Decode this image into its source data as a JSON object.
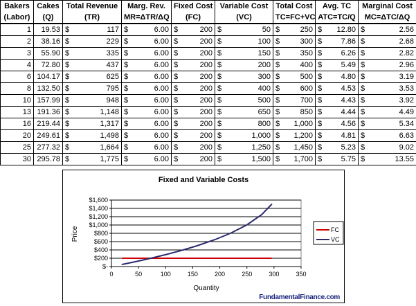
{
  "table": {
    "headers1": [
      "Bakers",
      "Cakes",
      "Total Revenue",
      "Marg. Rev.",
      "Fixed Cost",
      "Variable Cost",
      "Total Cost",
      "Avg. TC",
      "Marginal Cost"
    ],
    "headers2": [
      "(Labor)",
      "(Q)",
      "(TR)",
      "MR=ΔTR/ΔQ",
      "(FC)",
      "(VC)",
      "TC=FC+VC",
      "ATC=TC/Q",
      "MC=ΔTC/ΔQ"
    ],
    "currency": "$",
    "rows": [
      [
        "1",
        "19.53",
        "117",
        "6.00",
        "200",
        "50",
        "250",
        "12.80",
        "2.56"
      ],
      [
        "2",
        "38.16",
        "229",
        "6.00",
        "200",
        "100",
        "300",
        "7.86",
        "2.68"
      ],
      [
        "3",
        "55.90",
        "335",
        "6.00",
        "200",
        "150",
        "350",
        "6.26",
        "2.82"
      ],
      [
        "4",
        "72.80",
        "437",
        "6.00",
        "200",
        "200",
        "400",
        "5.49",
        "2.96"
      ],
      [
        "6",
        "104.17",
        "625",
        "6.00",
        "200",
        "300",
        "500",
        "4.80",
        "3.19"
      ],
      [
        "8",
        "132.50",
        "795",
        "6.00",
        "200",
        "400",
        "600",
        "4.53",
        "3.53"
      ],
      [
        "10",
        "157.99",
        "948",
        "6.00",
        "200",
        "500",
        "700",
        "4.43",
        "3.92"
      ],
      [
        "13",
        "191.36",
        "1,148",
        "6.00",
        "200",
        "650",
        "850",
        "4.44",
        "4.49"
      ],
      [
        "16",
        "219.44",
        "1,317",
        "6.00",
        "200",
        "800",
        "1,000",
        "4.56",
        "5.34"
      ],
      [
        "20",
        "249.61",
        "1,498",
        "6.00",
        "200",
        "1,000",
        "1,200",
        "4.81",
        "6.63"
      ],
      [
        "25",
        "277.32",
        "1,664",
        "6.00",
        "200",
        "1,250",
        "1,450",
        "5.23",
        "9.02"
      ],
      [
        "30",
        "295.78",
        "1,775",
        "6.00",
        "200",
        "1,500",
        "1,700",
        "5.75",
        "13.55"
      ]
    ]
  },
  "chart_data": {
    "type": "line",
    "title": "Fixed and Variable Costs",
    "xlabel": "Quantity",
    "ylabel": "Price",
    "xlim": [
      0,
      350
    ],
    "ylim": [
      0,
      1600
    ],
    "xticks": [
      "0",
      "50",
      "100",
      "150",
      "200",
      "250",
      "300",
      "350"
    ],
    "yticks": [
      "$-",
      "$200",
      "$400",
      "$600",
      "$800",
      "$1,000",
      "$1,200",
      "$1,400",
      "$1,600"
    ],
    "grid": "horizontal",
    "legend": "right",
    "x": [
      19.53,
      38.16,
      55.9,
      72.8,
      104.17,
      132.5,
      157.99,
      191.36,
      219.44,
      249.61,
      277.32,
      295.78
    ],
    "series": [
      {
        "name": "FC",
        "color": "#cc0000",
        "values": [
          200,
          200,
          200,
          200,
          200,
          200,
          200,
          200,
          200,
          200,
          200,
          200
        ]
      },
      {
        "name": "VC",
        "color": "#2b2b6e",
        "values": [
          50,
          100,
          150,
          200,
          300,
          400,
          500,
          650,
          800,
          1000,
          1250,
          1500
        ]
      }
    ]
  },
  "footer": {
    "brand": "FundamentalFinance.com"
  }
}
